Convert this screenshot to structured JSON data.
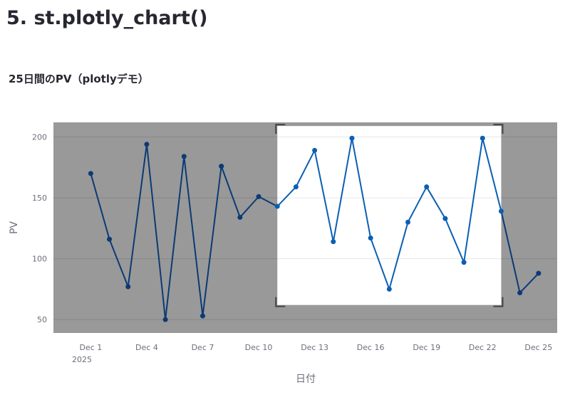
{
  "page": {
    "heading": "5. st.plotly_chart()"
  },
  "chart_data": {
    "type": "line",
    "title": "25日間のPV（plotlyデモ）",
    "xlabel": "日付",
    "ylabel": "PV",
    "x": [
      "2025-12-01",
      "2025-12-02",
      "2025-12-03",
      "2025-12-04",
      "2025-12-05",
      "2025-12-06",
      "2025-12-07",
      "2025-12-08",
      "2025-12-09",
      "2025-12-10",
      "2025-12-11",
      "2025-12-12",
      "2025-12-13",
      "2025-12-14",
      "2025-12-15",
      "2025-12-16",
      "2025-12-17",
      "2025-12-18",
      "2025-12-19",
      "2025-12-20",
      "2025-12-21",
      "2025-12-22",
      "2025-12-23",
      "2025-12-24",
      "2025-12-25"
    ],
    "series": [
      {
        "values": [
          170,
          116,
          77,
          194,
          50,
          184,
          53,
          176,
          134,
          151,
          143,
          159,
          189,
          114,
          199,
          117,
          75,
          130,
          159,
          133,
          97,
          199,
          139,
          72,
          88
        ]
      }
    ],
    "xticks": [
      "Dec 1",
      "Dec 4",
      "Dec 7",
      "Dec 10",
      "Dec 13",
      "Dec 16",
      "Dec 19",
      "Dec 22",
      "Dec 25"
    ],
    "xtick_year": "2025",
    "yticks": [
      50,
      100,
      150,
      200
    ],
    "xlim": [
      "2025-11-29",
      "2025-12-26"
    ],
    "ylim": [
      39,
      212
    ],
    "grid": true,
    "legend": "none",
    "colors": {
      "line": "#0a5fb4",
      "line_dimmed": "#0b3a74",
      "plot_background": "#999999",
      "selection_background": "#ffffff",
      "gridline": "#888888",
      "gridline_selection": "#e6e6e6",
      "selection_corner": "#444444"
    },
    "selection": {
      "x_range": [
        "2025-12-11",
        "2025-12-23"
      ],
      "y_range": [
        62,
        209
      ]
    }
  }
}
